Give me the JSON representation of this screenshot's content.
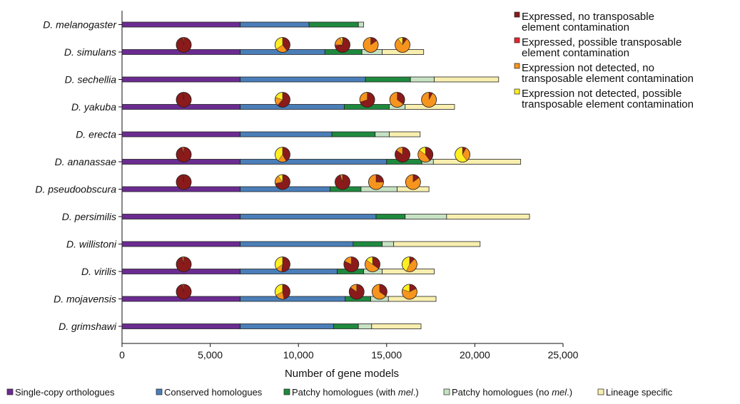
{
  "chart_data": {
    "type": "bar",
    "orientation": "horizontal",
    "stacked": true,
    "xlabel": "Number of gene models",
    "xlim": [
      0,
      25000
    ],
    "xticks": [
      0,
      5000,
      10000,
      15000,
      20000,
      25000
    ],
    "xtick_labels": [
      "0",
      "5,000",
      "10,000",
      "15,000",
      "20,000",
      "25,000"
    ],
    "grid": false,
    "categories": [
      "D. melanogaster",
      "D. simulans",
      "D. sechellia",
      "D. yakuba",
      "D. erecta",
      "D. ananassae",
      "D. pseudoobscura",
      "D. persimilis",
      "D. willistoni",
      "D. virilis",
      "D. mojavensis",
      "D. grimshawi"
    ],
    "series": [
      {
        "name": "Single-copy orthologues",
        "color": "#6b2c91",
        "values": [
          6700,
          6700,
          6700,
          6700,
          6700,
          6700,
          6700,
          6700,
          6700,
          6700,
          6700,
          6700
        ]
      },
      {
        "name": "Conserved homologues",
        "color": "#4a7eb8",
        "values": [
          3900,
          4800,
          7100,
          5900,
          5200,
          8300,
          5100,
          7700,
          6400,
          5500,
          5950,
          5300
        ]
      },
      {
        "name": "Patchy homologues (with mel.)",
        "color": "#1f8a3e",
        "values": [
          2800,
          2100,
          2550,
          2550,
          2450,
          2000,
          1750,
          1650,
          1650,
          1500,
          1450,
          1400
        ]
      },
      {
        "name": "Patchy homologues (no mel.)",
        "color": "#c6e2c3",
        "values": [
          300,
          1150,
          1350,
          900,
          800,
          650,
          2050,
          2350,
          650,
          1050,
          1000,
          750
        ]
      },
      {
        "name": "Lineage specific",
        "color": "#f8eeaf",
        "values": [
          0,
          2350,
          3650,
          2800,
          1750,
          4950,
          1800,
          4700,
          4900,
          2950,
          2700,
          2800
        ]
      }
    ],
    "legend_placement": "bottom",
    "pie_legend": {
      "placement": "top-right",
      "entries": [
        {
          "lines": [
            "Expressed, no transposable",
            "element contamination"
          ],
          "color": "#8b1a1a"
        },
        {
          "lines": [
            "Expressed, possible transposable",
            "element contamination"
          ],
          "color": "#e8262c"
        },
        {
          "lines": [
            "Expression not detected, no",
            "transposable element contamination"
          ],
          "color": "#f7941d"
        },
        {
          "lines": [
            "Expression not detected, possible",
            "transposable element contamination"
          ],
          "color": "#ffee22"
        }
      ]
    },
    "pies": [
      {
        "category": 1,
        "position": 3500,
        "fractions": [
          0.97,
          0.01,
          0.02,
          0.0
        ]
      },
      {
        "category": 1,
        "position": 9100,
        "fractions": [
          0.38,
          0.02,
          0.25,
          0.35
        ]
      },
      {
        "category": 1,
        "position": 12500,
        "fractions": [
          0.72,
          0.03,
          0.2,
          0.05
        ]
      },
      {
        "category": 1,
        "position": 14100,
        "fractions": [
          0.15,
          0.0,
          0.85,
          0.0
        ]
      },
      {
        "category": 1,
        "position": 15900,
        "fractions": [
          0.1,
          0.0,
          0.8,
          0.1
        ]
      },
      {
        "category": 3,
        "position": 3500,
        "fractions": [
          0.98,
          0.01,
          0.01,
          0.0
        ]
      },
      {
        "category": 3,
        "position": 9100,
        "fractions": [
          0.6,
          0.02,
          0.18,
          0.2
        ]
      },
      {
        "category": 3,
        "position": 13900,
        "fractions": [
          0.7,
          0.0,
          0.3,
          0.0
        ]
      },
      {
        "category": 3,
        "position": 15600,
        "fractions": [
          0.35,
          0.0,
          0.65,
          0.0
        ]
      },
      {
        "category": 3,
        "position": 17400,
        "fractions": [
          0.08,
          0.0,
          0.92,
          0.0
        ]
      },
      {
        "category": 5,
        "position": 3500,
        "fractions": [
          0.95,
          0.02,
          0.03,
          0.0
        ]
      },
      {
        "category": 5,
        "position": 9100,
        "fractions": [
          0.4,
          0.02,
          0.18,
          0.4
        ]
      },
      {
        "category": 5,
        "position": 15900,
        "fractions": [
          0.85,
          0.0,
          0.15,
          0.0
        ]
      },
      {
        "category": 5,
        "position": 17200,
        "fractions": [
          0.4,
          0.0,
          0.45,
          0.15
        ]
      },
      {
        "category": 5,
        "position": 19300,
        "fractions": [
          0.08,
          0.0,
          0.32,
          0.6
        ]
      },
      {
        "category": 6,
        "position": 3500,
        "fractions": [
          0.98,
          0.01,
          0.01,
          0.0
        ]
      },
      {
        "category": 6,
        "position": 9100,
        "fractions": [
          0.7,
          0.02,
          0.18,
          0.1
        ]
      },
      {
        "category": 6,
        "position": 12500,
        "fractions": [
          0.95,
          0.0,
          0.05,
          0.0
        ]
      },
      {
        "category": 6,
        "position": 14400,
        "fractions": [
          0.25,
          0.0,
          0.75,
          0.0
        ]
      },
      {
        "category": 6,
        "position": 16500,
        "fractions": [
          0.15,
          0.0,
          0.85,
          0.0
        ]
      },
      {
        "category": 9,
        "position": 3500,
        "fractions": [
          0.95,
          0.02,
          0.03,
          0.0
        ]
      },
      {
        "category": 9,
        "position": 9100,
        "fractions": [
          0.5,
          0.02,
          0.13,
          0.35
        ]
      },
      {
        "category": 9,
        "position": 13000,
        "fractions": [
          0.82,
          0.0,
          0.18,
          0.0
        ]
      },
      {
        "category": 9,
        "position": 14200,
        "fractions": [
          0.35,
          0.0,
          0.5,
          0.15
        ]
      },
      {
        "category": 9,
        "position": 16300,
        "fractions": [
          0.12,
          0.0,
          0.45,
          0.43
        ]
      },
      {
        "category": 10,
        "position": 3500,
        "fractions": [
          0.96,
          0.02,
          0.02,
          0.0
        ]
      },
      {
        "category": 10,
        "position": 9100,
        "fractions": [
          0.45,
          0.02,
          0.2,
          0.33
        ]
      },
      {
        "category": 10,
        "position": 13300,
        "fractions": [
          0.85,
          0.0,
          0.15,
          0.0
        ]
      },
      {
        "category": 10,
        "position": 14600,
        "fractions": [
          0.35,
          0.0,
          0.65,
          0.0
        ]
      },
      {
        "category": 10,
        "position": 16300,
        "fractions": [
          0.18,
          0.0,
          0.62,
          0.2
        ]
      }
    ]
  }
}
